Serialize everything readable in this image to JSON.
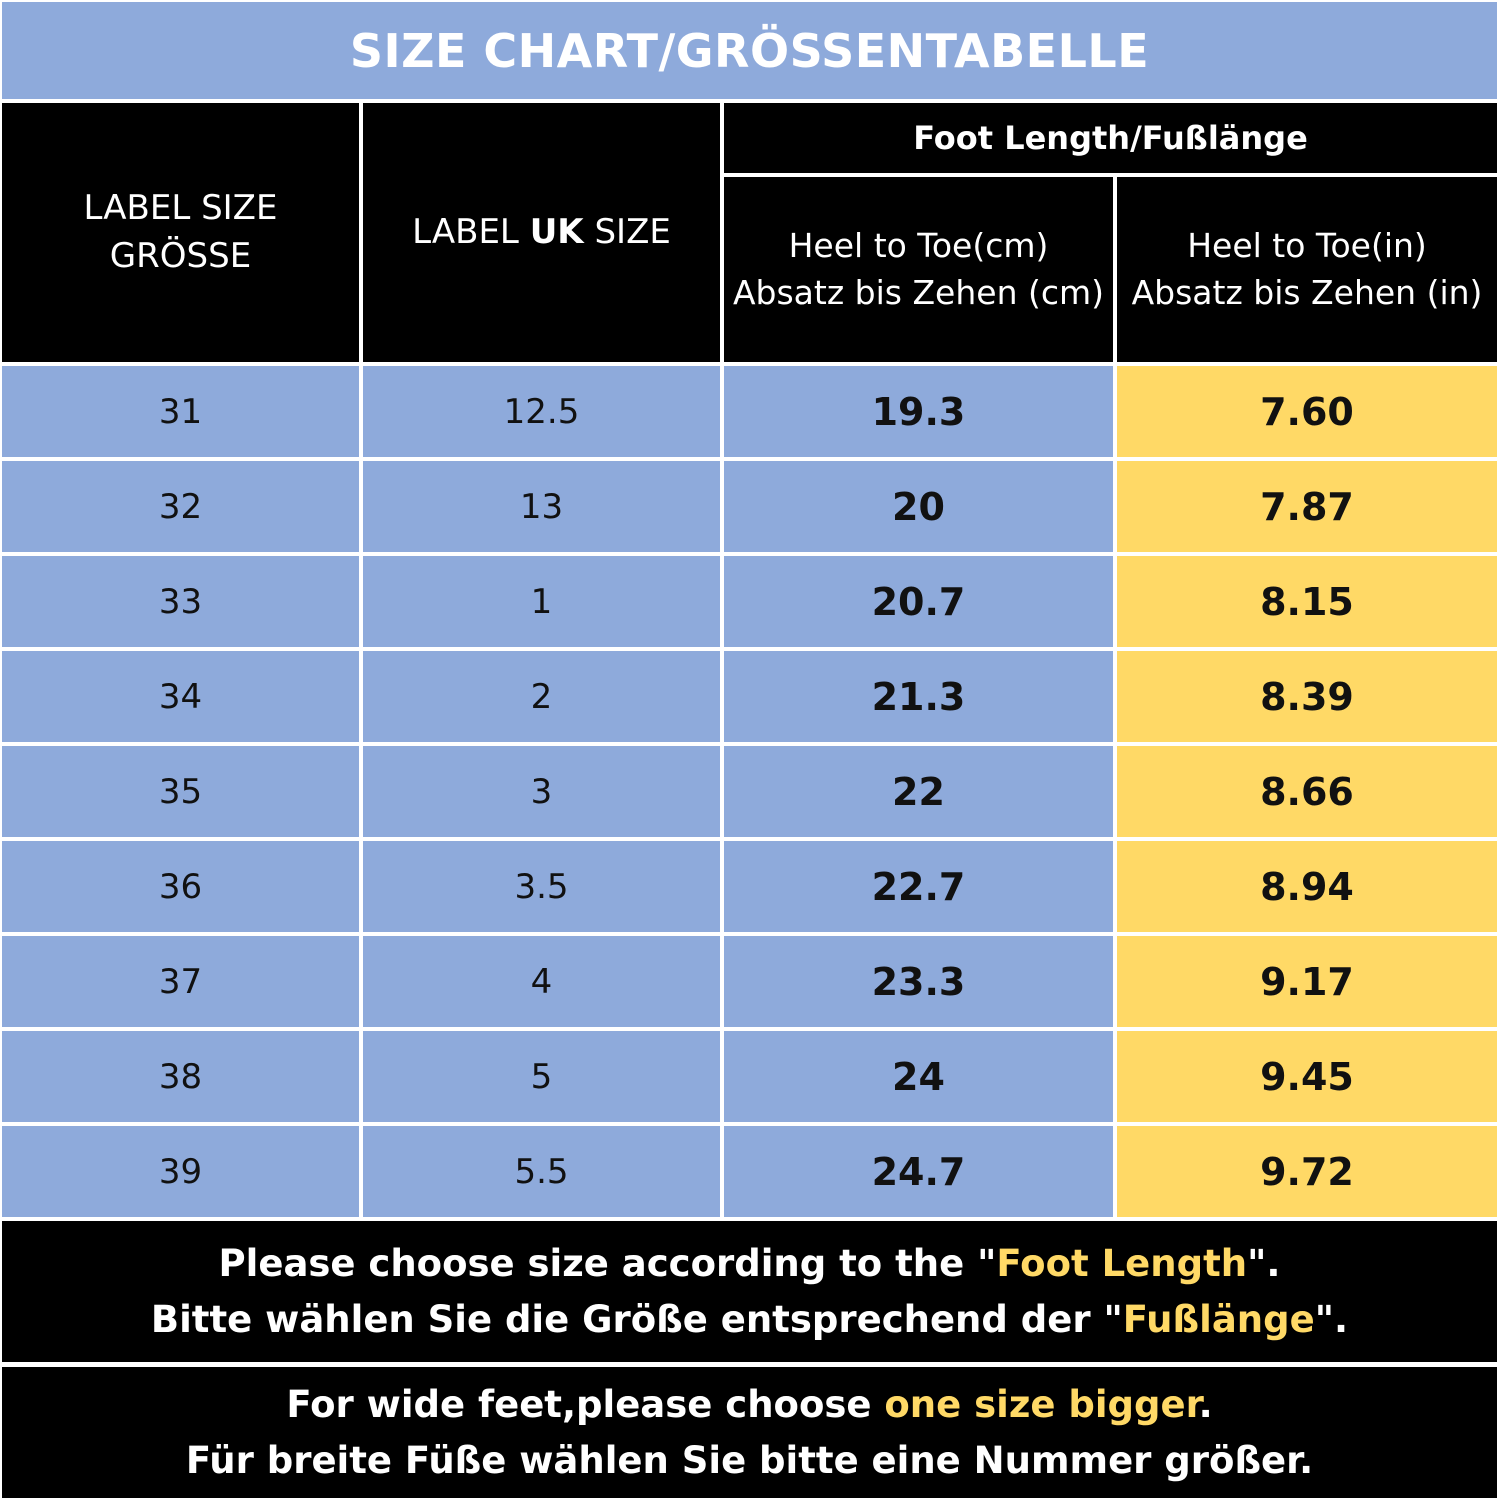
{
  "title": "SIZE CHART/GRÖSSENTABELLE",
  "headers": {
    "label_size_line1": "LABEL SIZE",
    "label_size_line2": "GRÖSSE",
    "uk_prefix": "LABEL ",
    "uk_strong": "UK",
    "uk_suffix": " SIZE",
    "foot_length": "Foot Length/Fußlänge",
    "cm_line1": "Heel to Toe(cm)",
    "cm_line2": "Absatz bis Zehen (cm)",
    "in_line1": "Heel to Toe(in)",
    "in_line2": "Absatz bis Zehen (in)"
  },
  "rows": [
    {
      "size": "31",
      "uk": "12.5",
      "cm": "19.3",
      "in": "7.60"
    },
    {
      "size": "32",
      "uk": "13",
      "cm": "20",
      "in": "7.87"
    },
    {
      "size": "33",
      "uk": "1",
      "cm": "20.7",
      "in": "8.15"
    },
    {
      "size": "34",
      "uk": "2",
      "cm": "21.3",
      "in": "8.39"
    },
    {
      "size": "35",
      "uk": "3",
      "cm": "22",
      "in": "8.66"
    },
    {
      "size": "36",
      "uk": "3.5",
      "cm": "22.7",
      "in": "8.94"
    },
    {
      "size": "37",
      "uk": "4",
      "cm": "23.3",
      "in": "9.17"
    },
    {
      "size": "38",
      "uk": "5",
      "cm": "24",
      "in": "9.45"
    },
    {
      "size": "39",
      "uk": "5.5",
      "cm": "24.7",
      "in": "9.72"
    }
  ],
  "note1": {
    "en_before": "Please choose size according to the \"",
    "en_highlight": "Foot Length",
    "en_after": "\".",
    "de_before": "Bitte wählen Sie die Größe entsprechend der \"",
    "de_highlight": "Fußlänge",
    "de_after": "\"."
  },
  "note2": {
    "en_before": "For wide feet,please choose ",
    "en_highlight": "one size bigger",
    "en_after": ".",
    "de": "Für breite Füße wählen Sie bitte eine Nummer größer."
  },
  "colors": {
    "blue": "#8eaadb",
    "yellow": "#ffd966",
    "black": "#000000",
    "white": "#ffffff"
  }
}
